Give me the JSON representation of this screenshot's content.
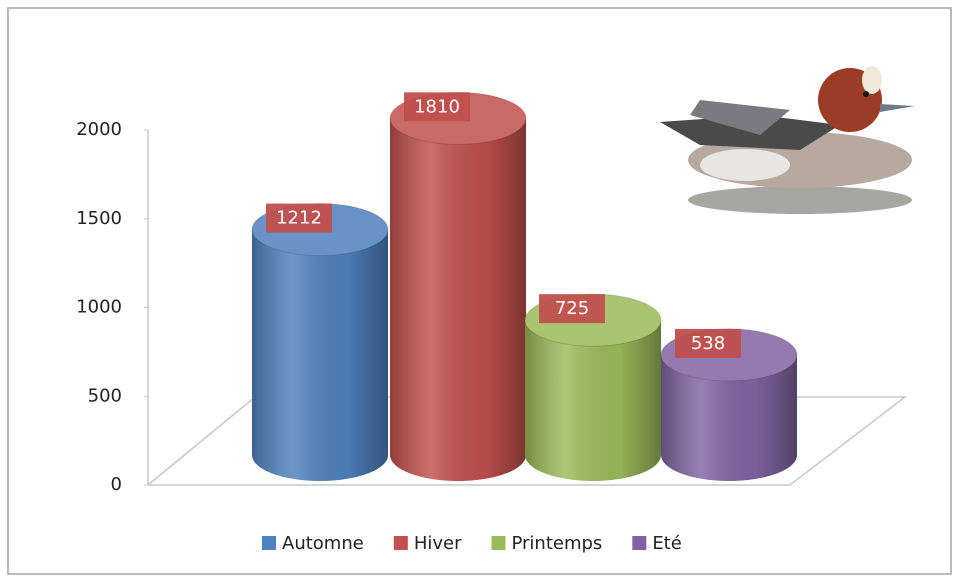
{
  "chart_data": {
    "type": "bar",
    "categories": [
      null
    ],
    "series": [
      {
        "name": "Automne",
        "color": "#4f81bd",
        "values": [
          1212
        ]
      },
      {
        "name": "Hiver",
        "color": "#c0504d",
        "values": [
          1810
        ]
      },
      {
        "name": "Printemps",
        "color": "#9bbb59",
        "values": [
          725
        ]
      },
      {
        "name": "Eté",
        "color": "#8064a2",
        "values": [
          538
        ]
      }
    ],
    "ylim": [
      0,
      2000
    ],
    "yticks": [
      0,
      500,
      1000,
      1500,
      2000
    ],
    "legend": "bottom"
  }
}
